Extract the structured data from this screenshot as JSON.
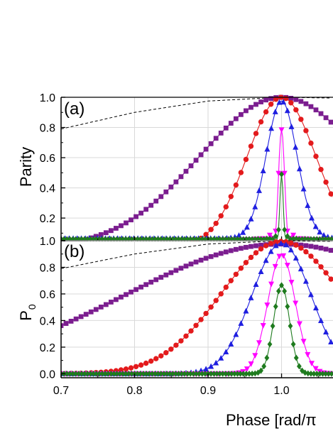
{
  "chart_data": [
    {
      "panel_label": "(a)",
      "type": "line",
      "ylabel": "Parity",
      "xlim": [
        0.7,
        1.07
      ],
      "ylim": [
        0.05,
        1.0
      ],
      "yticks": [
        "0.2",
        "0.4",
        "0.6",
        "0.8",
        "1.0"
      ],
      "grid": true,
      "envelope": {
        "style": "dashed",
        "color": "#000000",
        "x": [
          0.7,
          0.8,
          0.9,
          1.0,
          1.07
        ],
        "y": [
          0.79,
          0.9,
          0.975,
          1.0,
          0.995
        ]
      },
      "series": [
        {
          "marker": "square",
          "color": "#7b1d8f",
          "curve": {
            "kind": "gauss",
            "base": 0.0,
            "amp": 1.0,
            "center": 1.0,
            "width": 0.112
          }
        },
        {
          "marker": "circle",
          "color": "#e31a1c",
          "curve": {
            "kind": "gauss",
            "base": 0.0,
            "amp": 1.0,
            "center": 1.0,
            "width": 0.047
          }
        },
        {
          "marker": "triangle-up",
          "color": "#1f1fe0",
          "curve": {
            "kind": "gauss",
            "base": 0.065,
            "amp": 0.91,
            "center": 1.0,
            "width": 0.021
          }
        },
        {
          "marker": "triangle-down",
          "color": "#ff00ff",
          "curve": {
            "kind": "sinc",
            "base": 0.055,
            "amp": 0.73,
            "center": 1.0,
            "width": 0.0105
          }
        },
        {
          "marker": "diamond",
          "color": "#1e7b1e",
          "curve": {
            "kind": "sinc",
            "base": 0.06,
            "amp": 0.43,
            "center": 1.0,
            "width": 0.0058
          }
        }
      ]
    },
    {
      "panel_label": "(b)",
      "type": "line",
      "ylabel": "P",
      "ylabel_sub": "0",
      "xlabel": "Phase [rad/π",
      "xlim": [
        0.7,
        1.07
      ],
      "ylim": [
        -0.03,
        1.0
      ],
      "xticks": [
        "0.7",
        "0.8",
        "0.9",
        "1.0"
      ],
      "yticks": [
        "0.0",
        "0.2",
        "0.4",
        "0.6",
        "0.8",
        "1.0"
      ],
      "grid": true,
      "envelope": {
        "style": "dashed",
        "color": "#000000",
        "x": [
          0.7,
          0.8,
          0.9,
          1.0,
          1.07
        ],
        "y": [
          0.79,
          0.9,
          0.975,
          1.0,
          0.995
        ]
      },
      "series": [
        {
          "marker": "square",
          "color": "#7b1d8f",
          "curve": {
            "kind": "gauss",
            "base": 0.0,
            "amp": 0.975,
            "center": 1.0,
            "width": 0.213
          }
        },
        {
          "marker": "circle",
          "color": "#e31a1c",
          "curve": {
            "kind": "gauss",
            "base": 0.0,
            "amp": 0.995,
            "center": 1.0,
            "width": 0.082
          }
        },
        {
          "marker": "triangle-up",
          "color": "#1f1fe0",
          "curve": {
            "kind": "gauss",
            "base": 0.0,
            "amp": 0.98,
            "center": 1.0,
            "width": 0.04
          }
        },
        {
          "marker": "triangle-down",
          "color": "#ff00ff",
          "curve": {
            "kind": "gauss",
            "base": 0.0,
            "amp": 0.895,
            "center": 1.0,
            "width": 0.0186
          }
        },
        {
          "marker": "diamond",
          "color": "#1e7b1e",
          "curve": {
            "kind": "gauss",
            "base": 0.0,
            "amp": 0.665,
            "center": 1.0,
            "width": 0.0108
          }
        }
      ]
    }
  ]
}
